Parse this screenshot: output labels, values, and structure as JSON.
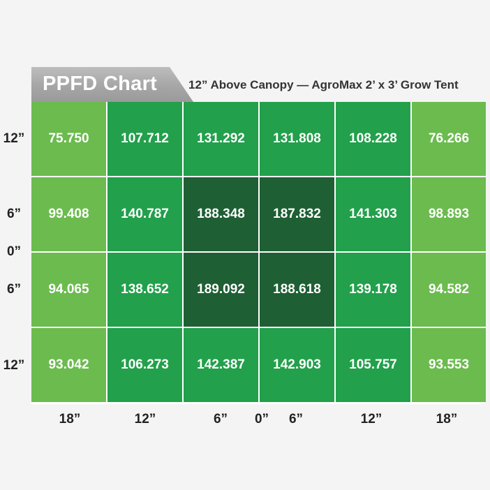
{
  "chart_data": {
    "type": "heatmap",
    "title": "PPFD Chart",
    "subtitle": "12” Above Canopy — AgroMax 2’ x 3’ Grow Tent",
    "x_tick_labels": [
      "18”",
      "12”",
      "6”",
      "0”",
      "6”",
      "12”",
      "18”"
    ],
    "y_tick_labels": [
      "12”",
      "6”",
      "0”",
      "6”",
      "12”"
    ],
    "rows": [
      [
        75.75,
        107.712,
        131.292,
        131.808,
        108.228,
        76.266
      ],
      [
        99.408,
        140.787,
        188.348,
        187.832,
        141.303,
        98.893
      ],
      [
        94.065,
        138.652,
        189.092,
        188.618,
        139.178,
        94.582
      ],
      [
        93.042,
        106.273,
        142.387,
        142.903,
        105.757,
        93.553
      ]
    ],
    "color_bands": [
      {
        "min": 0,
        "max": 100,
        "color": "#6bbb4e"
      },
      {
        "min": 100,
        "max": 180,
        "color": "#22a04b"
      },
      {
        "min": 180,
        "max": 1000,
        "color": "#1e5f34"
      }
    ]
  }
}
